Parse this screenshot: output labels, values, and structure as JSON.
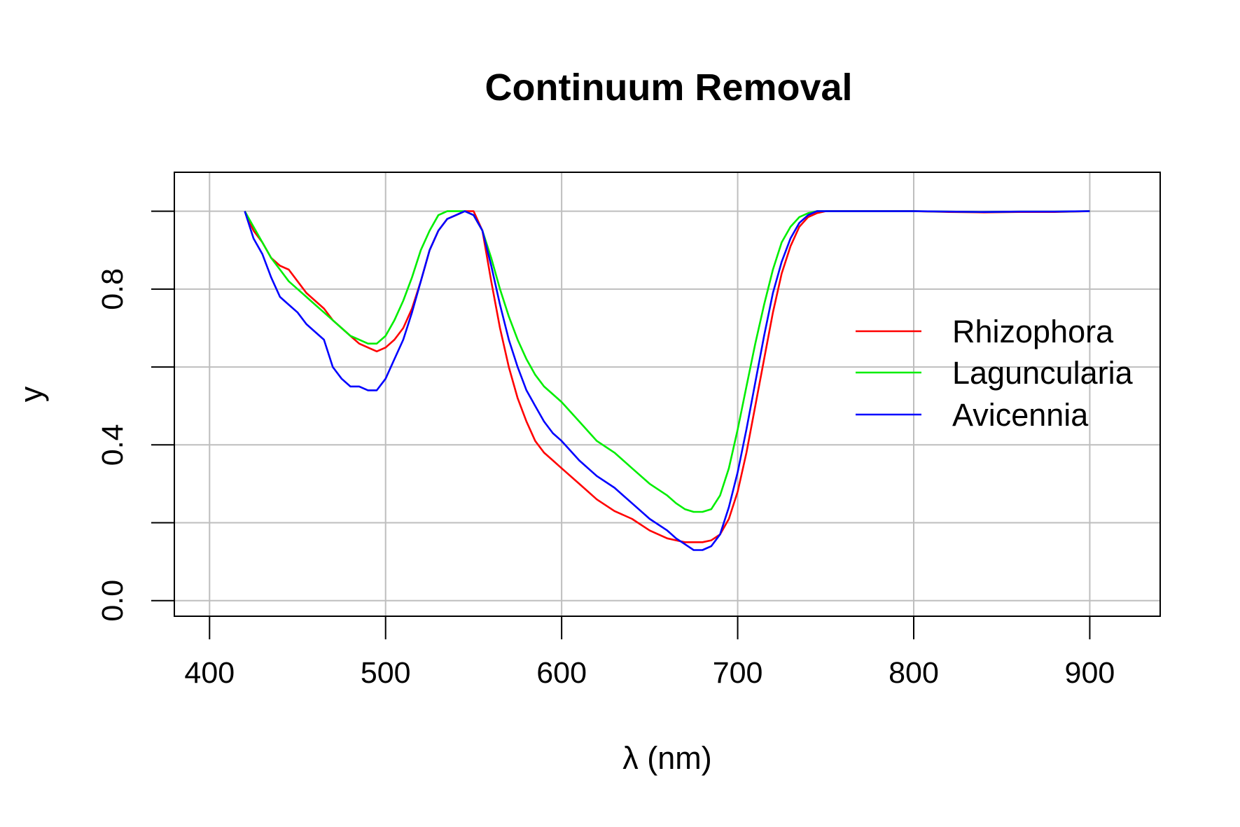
{
  "chart_data": {
    "type": "line",
    "title": "Continuum Removal",
    "xlabel": "λ (nm)",
    "ylabel": "y",
    "xlim": [
      380,
      940
    ],
    "ylim": [
      -0.04,
      1.1
    ],
    "xticks": [
      400,
      500,
      600,
      700,
      800,
      900
    ],
    "yticks": [
      0.0,
      0.2,
      0.4,
      0.6,
      0.8,
      1.0
    ],
    "ytick_labels": [
      "0.0",
      "",
      "0.4",
      "",
      "0.8",
      ""
    ],
    "grid": true,
    "legend_position": "right",
    "x": [
      420,
      425,
      430,
      435,
      440,
      445,
      450,
      455,
      460,
      465,
      470,
      475,
      480,
      485,
      490,
      495,
      500,
      505,
      510,
      515,
      520,
      525,
      530,
      535,
      540,
      545,
      550,
      555,
      560,
      565,
      570,
      575,
      580,
      585,
      590,
      595,
      600,
      610,
      620,
      630,
      640,
      650,
      660,
      665,
      670,
      675,
      680,
      685,
      690,
      695,
      700,
      705,
      710,
      715,
      720,
      725,
      730,
      735,
      740,
      745,
      750,
      760,
      780,
      800,
      820,
      840,
      860,
      880,
      900
    ],
    "series": [
      {
        "name": "Rhizophora",
        "color": "#ff0000",
        "values": [
          1.0,
          0.95,
          0.92,
          0.88,
          0.86,
          0.85,
          0.82,
          0.79,
          0.77,
          0.75,
          0.72,
          0.7,
          0.68,
          0.66,
          0.65,
          0.64,
          0.65,
          0.67,
          0.7,
          0.75,
          0.82,
          0.9,
          0.95,
          0.98,
          0.99,
          1.0,
          1.0,
          0.95,
          0.82,
          0.7,
          0.6,
          0.52,
          0.46,
          0.41,
          0.38,
          0.36,
          0.34,
          0.3,
          0.26,
          0.23,
          0.21,
          0.18,
          0.16,
          0.155,
          0.15,
          0.15,
          0.15,
          0.155,
          0.17,
          0.21,
          0.28,
          0.38,
          0.5,
          0.62,
          0.74,
          0.84,
          0.91,
          0.96,
          0.985,
          0.995,
          1.0,
          1.0,
          1.0,
          1.0,
          0.998,
          0.997,
          0.998,
          0.998,
          1.0
        ]
      },
      {
        "name": "Laguncularia",
        "color": "#00ee00",
        "values": [
          1.0,
          0.96,
          0.92,
          0.88,
          0.85,
          0.82,
          0.8,
          0.78,
          0.76,
          0.74,
          0.72,
          0.7,
          0.68,
          0.67,
          0.66,
          0.66,
          0.68,
          0.72,
          0.77,
          0.83,
          0.9,
          0.95,
          0.99,
          1.0,
          1.0,
          1.0,
          0.99,
          0.95,
          0.88,
          0.8,
          0.73,
          0.67,
          0.62,
          0.58,
          0.55,
          0.53,
          0.51,
          0.46,
          0.41,
          0.38,
          0.34,
          0.3,
          0.27,
          0.25,
          0.235,
          0.228,
          0.228,
          0.235,
          0.27,
          0.34,
          0.44,
          0.55,
          0.66,
          0.76,
          0.85,
          0.92,
          0.96,
          0.985,
          0.995,
          1.0,
          1.0,
          1.0,
          1.0,
          1.0,
          0.999,
          0.998,
          0.999,
          0.999,
          1.0
        ]
      },
      {
        "name": "Avicennia",
        "color": "#0000ff",
        "values": [
          1.0,
          0.93,
          0.89,
          0.83,
          0.78,
          0.76,
          0.74,
          0.71,
          0.69,
          0.67,
          0.6,
          0.57,
          0.55,
          0.55,
          0.54,
          0.54,
          0.57,
          0.62,
          0.67,
          0.74,
          0.82,
          0.9,
          0.95,
          0.98,
          0.99,
          1.0,
          0.99,
          0.95,
          0.86,
          0.76,
          0.67,
          0.6,
          0.54,
          0.5,
          0.46,
          0.43,
          0.41,
          0.36,
          0.32,
          0.29,
          0.25,
          0.21,
          0.18,
          0.16,
          0.145,
          0.13,
          0.13,
          0.14,
          0.17,
          0.24,
          0.33,
          0.44,
          0.56,
          0.68,
          0.79,
          0.87,
          0.93,
          0.97,
          0.99,
          1.0,
          1.0,
          1.0,
          1.0,
          1.0,
          0.999,
          0.998,
          0.999,
          0.999,
          1.0
        ]
      }
    ]
  }
}
